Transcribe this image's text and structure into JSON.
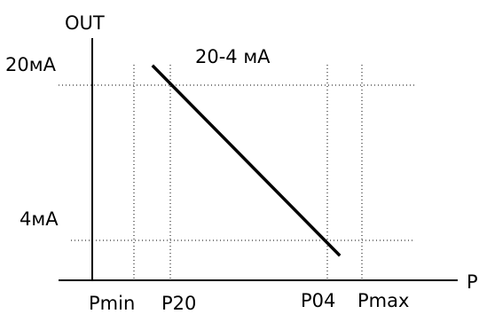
{
  "diagram": {
    "y_axis_label": "OUT",
    "x_axis_label": "P",
    "y_levels": [
      {
        "id": "20ma",
        "label": "20мА"
      },
      {
        "id": "4ma",
        "label": "4мА"
      }
    ],
    "x_marks": [
      {
        "id": "pmin",
        "label": "Pmin"
      },
      {
        "id": "p20",
        "label": "P20"
      },
      {
        "id": "p04",
        "label": "P04"
      },
      {
        "id": "pmax",
        "label": "Pmax"
      }
    ],
    "line_label": "20-4 мА",
    "line_from": "P20 at 20мА",
    "line_to": "P04 at 4мА",
    "colors": {
      "line": "#000000",
      "background": "#ffffff"
    }
  }
}
